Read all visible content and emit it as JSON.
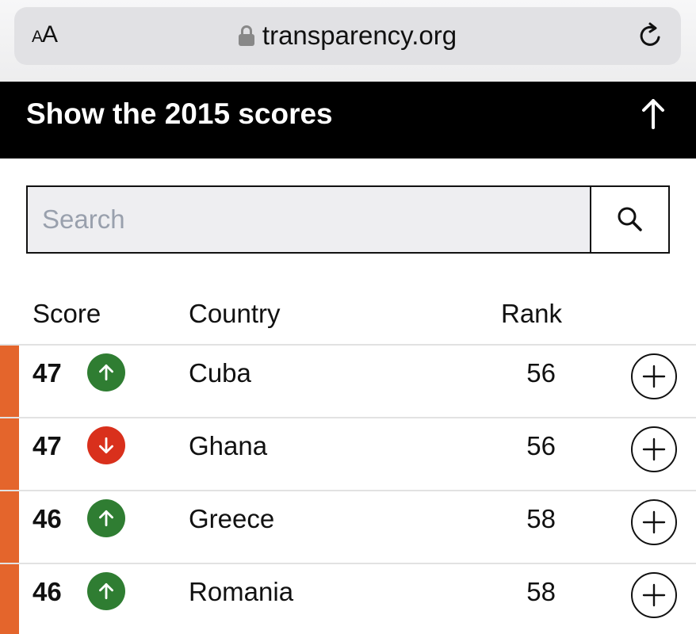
{
  "browser": {
    "text_size_small": "A",
    "text_size_large": "A",
    "url": "transparency.org",
    "reload_icon": "reload-icon",
    "lock_icon": "lock-icon"
  },
  "banner": {
    "title": "Show the 2015 scores",
    "arrow_icon": "arrow-up-icon"
  },
  "search": {
    "placeholder": "Search",
    "value": "",
    "icon": "search-icon"
  },
  "table": {
    "headers": {
      "score": "Score",
      "country": "Country",
      "rank": "Rank"
    },
    "rows": [
      {
        "score": "47",
        "trend": "up",
        "country": "Cuba",
        "rank": "56"
      },
      {
        "score": "47",
        "trend": "down",
        "country": "Ghana",
        "rank": "56"
      },
      {
        "score": "46",
        "trend": "up",
        "country": "Greece",
        "rank": "58"
      },
      {
        "score": "46",
        "trend": "up",
        "country": "Romania",
        "rank": "58"
      }
    ]
  },
  "colors": {
    "stripe": "#e4652c",
    "trend_up": "#2f7d32",
    "trend_down": "#d9301c",
    "banner_bg": "#000000"
  }
}
